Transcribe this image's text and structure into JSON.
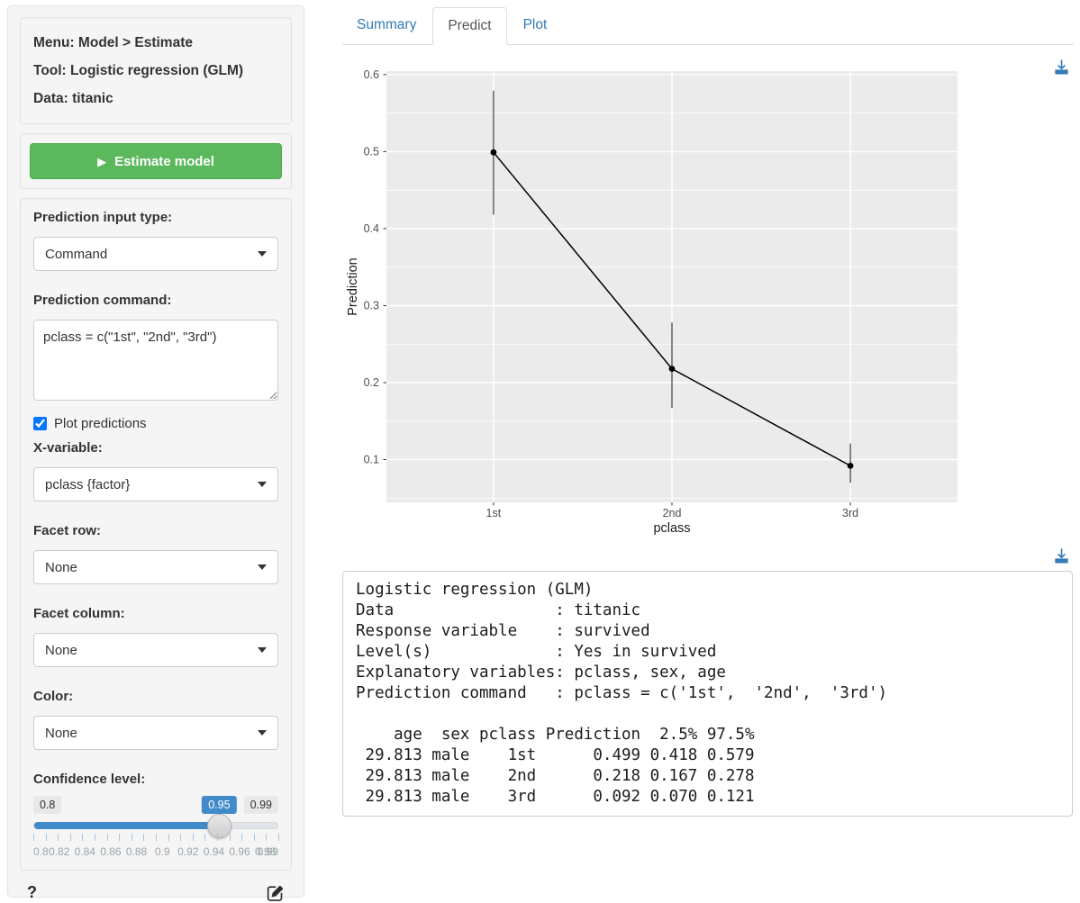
{
  "colors": {
    "accent_blue": "#337ab7",
    "slider_blue": "#428bca",
    "success_green": "#5cb85c",
    "panel_gray": "#ebebeb"
  },
  "sidebar": {
    "info": {
      "menu": "Menu: Model > Estimate",
      "tool": "Tool: Logistic regression (GLM)",
      "data": "Data: titanic"
    },
    "estimate_button_label": "Estimate model",
    "controls": {
      "input_type": {
        "label": "Prediction input type:",
        "value": "Command"
      },
      "command": {
        "label": "Prediction command:",
        "value": "pclass = c(\"1st\", \"2nd\", \"3rd\")"
      },
      "plot_predictions": {
        "label": "Plot predictions",
        "checked": true
      },
      "x_variable": {
        "label": "X-variable:",
        "value": "pclass {factor}"
      },
      "facet_row": {
        "label": "Facet row:",
        "value": "None"
      },
      "facet_column": {
        "label": "Facet column:",
        "value": "None"
      },
      "color": {
        "label": "Color:",
        "value": "None"
      },
      "confidence": {
        "label": "Confidence level:",
        "min": 0.8,
        "max": 0.99,
        "value": 0.95,
        "min_label": "0.8",
        "max_label": "0.99",
        "value_label": "0.95",
        "grid_labels": [
          "0.8",
          "0.82",
          "0.84",
          "0.86",
          "0.88",
          "0.9",
          "0.92",
          "0.94",
          "0.96",
          "0.98",
          "0.99"
        ],
        "minor_tick_count": 21
      }
    },
    "help_label": "?"
  },
  "tabs": [
    {
      "label": "Summary",
      "active": false
    },
    {
      "label": "Predict",
      "active": true
    },
    {
      "label": "Plot",
      "active": false
    }
  ],
  "chart_data": {
    "type": "line",
    "x_categories": [
      "1st",
      "2nd",
      "3rd"
    ],
    "series": [
      {
        "name": "Prediction",
        "values": [
          0.499,
          0.218,
          0.092
        ],
        "ci_lower": [
          0.418,
          0.167,
          0.07
        ],
        "ci_upper": [
          0.579,
          0.278,
          0.121
        ]
      }
    ],
    "xlabel": "pclass",
    "ylabel": "Prediction",
    "yticks": [
      0.1,
      0.2,
      0.3,
      0.4,
      0.5,
      0.6
    ],
    "ylim": [
      0.0445,
      0.6045
    ],
    "grid": true,
    "legend": "none",
    "style": "ggplot-gray-panel"
  },
  "output": {
    "lines": [
      "Logistic regression (GLM)",
      "Data                 : titanic",
      "Response variable    : survived",
      "Level(s)             : Yes in survived",
      "Explanatory variables: pclass, sex, age",
      "Prediction command   : pclass = c('1st',  '2nd',  '3rd')",
      "",
      "    age  sex pclass Prediction  2.5% 97.5%",
      " 29.813 male    1st      0.499 0.418 0.579",
      " 29.813 male    2nd      0.218 0.167 0.278",
      " 29.813 male    3rd      0.092 0.070 0.121"
    ]
  }
}
